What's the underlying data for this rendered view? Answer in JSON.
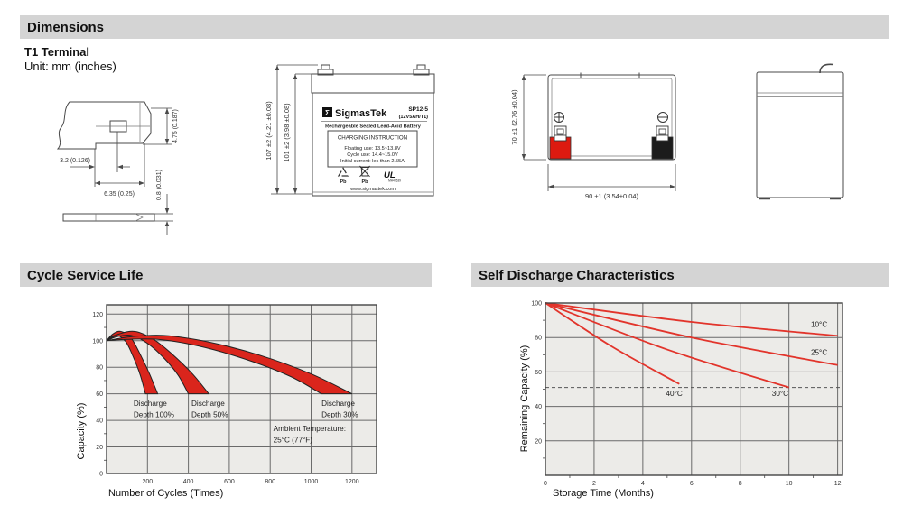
{
  "sections": {
    "dimensions": "Dimensions",
    "cycle_life": "Cycle Service Life",
    "self_discharge": "Self Discharge Characteristics"
  },
  "terminal": {
    "title": "T1 Terminal",
    "unit_note": "Unit: mm (inches)",
    "dims": {
      "tab_height": "4.75 (0.187)",
      "dimple_width": "3.2 (0.126)",
      "tab_width": "6.35 (0.25)",
      "thickness": "0.8 (0.031)"
    }
  },
  "front_view": {
    "dims": {
      "overall_height": "107 ±2 (4.21 ±0.08)",
      "case_height": "101 ±2 (3.98 ±0.08)"
    },
    "label": {
      "logo_glyph": "Σ",
      "brand": "SigmasTek",
      "model": "SP12-5",
      "rating": "(12V5AH/T1)",
      "subtitle": "Rechargeable Sealed Lead-Acid Battery",
      "charging_title": "CHARGING INSTRUCTION",
      "charging_lines": [
        "Floating use: 13.5~13.8V",
        "Cycle use: 14.4~15.0V",
        "Initial current: les than 2.55A"
      ],
      "recycle_pb": "Pb",
      "bin_pb": "Pb",
      "ul_mark": "UL",
      "ul_number": "MH47639",
      "website": "www.sigmastek.com"
    }
  },
  "top_view": {
    "dims": {
      "height": "70 ±1 (2.76 ±0.04)",
      "width": "90 ±1 (3.54±0.04)"
    },
    "positive_mark": "+",
    "negative_mark": "−",
    "terminal_colors": {
      "positive": "#dd1a10",
      "negative": "#1c1c1c"
    }
  },
  "chart_data": [
    {
      "id": "cycle-chart",
      "type": "area",
      "title": "Cycle Service Life",
      "xlabel": "Number of Cycles (Times)",
      "ylabel": "Capacity (%)",
      "xlim": [
        0,
        1320
      ],
      "ylim": [
        0,
        127
      ],
      "x_ticks": [
        200,
        400,
        600,
        800,
        1000,
        1200
      ],
      "y_ticks": [
        0,
        20,
        40,
        60,
        80,
        100,
        120
      ],
      "x_grid": [
        200,
        400,
        600,
        800,
        1000,
        1200
      ],
      "y_grid": [
        20,
        40,
        60,
        80,
        100,
        120
      ],
      "y_minor_step": 10,
      "grid": true,
      "legend": "none",
      "bands": [
        {
          "name": "Discharge Depth 100%",
          "upper": [
            [
              0,
              100
            ],
            [
              30,
              105
            ],
            [
              70,
              107
            ],
            [
              120,
              102
            ],
            [
              170,
              88
            ],
            [
              210,
              75
            ],
            [
              250,
              60
            ]
          ],
          "lower": [
            [
              0,
              100
            ],
            [
              25,
              103
            ],
            [
              55,
              104
            ],
            [
              95,
              99
            ],
            [
              130,
              88
            ],
            [
              165,
              74
            ],
            [
              190,
              60
            ]
          ]
        },
        {
          "name": "Discharge Depth 50%",
          "upper": [
            [
              0,
              100
            ],
            [
              60,
              105
            ],
            [
              140,
              107
            ],
            [
              230,
              101
            ],
            [
              320,
              90
            ],
            [
              420,
              75
            ],
            [
              500,
              60
            ]
          ],
          "lower": [
            [
              0,
              100
            ],
            [
              50,
              103
            ],
            [
              120,
              104
            ],
            [
              200,
              98
            ],
            [
              280,
              87
            ],
            [
              350,
              74
            ],
            [
              400,
              60
            ]
          ]
        },
        {
          "name": "Discharge Depth 30%",
          "upper": [
            [
              0,
              100
            ],
            [
              120,
              103
            ],
            [
              280,
              104
            ],
            [
              500,
              99
            ],
            [
              750,
              89
            ],
            [
              1000,
              75
            ],
            [
              1200,
              60
            ]
          ],
          "lower": [
            [
              0,
              100
            ],
            [
              100,
              101
            ],
            [
              250,
              101
            ],
            [
              450,
              96
            ],
            [
              680,
              86
            ],
            [
              900,
              73
            ],
            [
              1050,
              60
            ]
          ]
        }
      ],
      "annotations": [
        {
          "text_lines": [
            "Discharge",
            "Depth 100%"
          ],
          "x": 132,
          "y": 51
        },
        {
          "text_lines": [
            "Discharge",
            "Depth 50%"
          ],
          "x": 415,
          "y": 51
        },
        {
          "text_lines": [
            "Discharge",
            "Depth 30%"
          ],
          "x": 1051,
          "y": 51
        },
        {
          "text_lines": [
            "Ambient Temperature:",
            "25°C (77°F)"
          ],
          "x": 815,
          "y": 32
        }
      ],
      "colors": {
        "band_fill": "#da251c",
        "band_stroke": "#222222",
        "grid": "#6a6a6a",
        "bg": "#ecebe8",
        "axis": "#444444"
      }
    },
    {
      "id": "self-discharge-chart",
      "type": "line",
      "title": "Self Discharge Characteristics",
      "xlabel": "Storage Time (Months)",
      "ylabel": "Remaining Capacity (%)",
      "xlim": [
        0,
        12.2
      ],
      "ylim": [
        0,
        100
      ],
      "x_ticks": [
        0,
        2,
        4,
        6,
        8,
        10,
        12
      ],
      "y_ticks": [
        20,
        40,
        60,
        80,
        100
      ],
      "x_grid": [
        2,
        4,
        6,
        8,
        10,
        12
      ],
      "y_grid": [
        20,
        40,
        60,
        80
      ],
      "y_minor_step": 10,
      "x_minor_step": 1,
      "dashed_line_y": 51,
      "grid": true,
      "legend": "inline-labels",
      "series": [
        {
          "name": "10°C",
          "points": [
            [
              0,
              100
            ],
            [
              6,
              89
            ],
            [
              12,
              81
            ]
          ],
          "label_x": 10.9,
          "label_y": 86
        },
        {
          "name": "25°C",
          "points": [
            [
              0,
              100
            ],
            [
              6,
              80
            ],
            [
              12,
              64
            ]
          ],
          "label_x": 10.9,
          "label_y": 70
        },
        {
          "name": "30°C",
          "points": [
            [
              0,
              100
            ],
            [
              5,
              73
            ],
            [
              10,
              51
            ]
          ],
          "label_x": 9.3,
          "label_y": 46
        },
        {
          "name": "40°C",
          "points": [
            [
              0,
              100
            ],
            [
              2.7,
              75
            ],
            [
              5.5,
              53
            ]
          ],
          "label_x": 4.95,
          "label_y": 46
        }
      ],
      "colors": {
        "line": "#e2342b",
        "grid": "#6a6a6a",
        "bg": "#ecebe8",
        "axis": "#444444",
        "dashed": "#555555"
      }
    }
  ]
}
